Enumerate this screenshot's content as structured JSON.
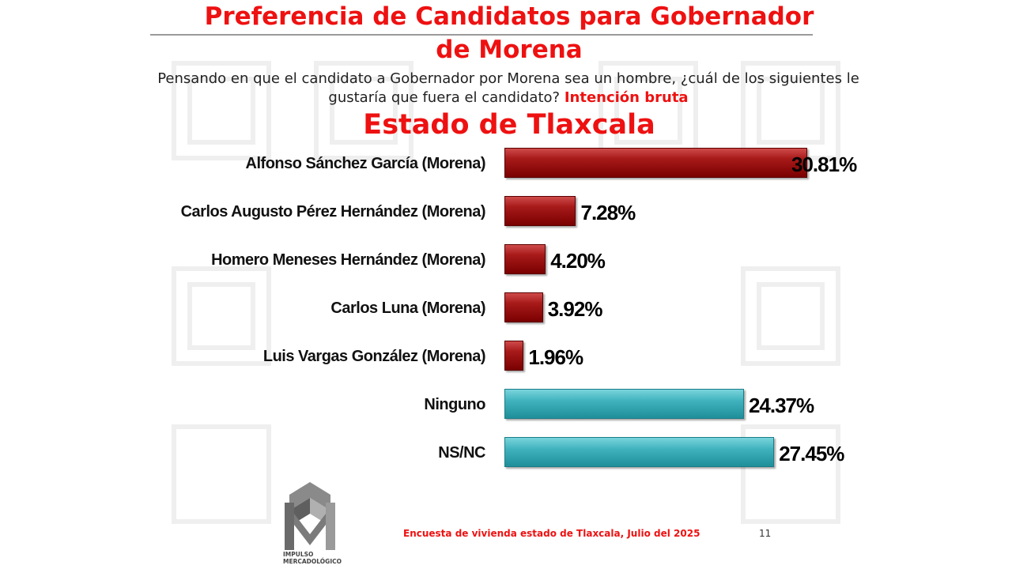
{
  "title_line1": "Preferencia de Candidatos para Gobernador",
  "title_line2": "de Morena",
  "question": "Pensando en que el candidato a Gobernador por Morena sea un hombre, ¿cuál de los siguientes le gustaría que fuera el candidato?",
  "question_highlight": "Intención bruta",
  "state": "Estado de Tlaxcala",
  "chart_data": {
    "type": "bar",
    "orientation": "horizontal",
    "categories": [
      "Alfonso Sánchez García (Morena)",
      "Carlos Augusto Pérez Hernández (Morena)",
      "Homero Meneses Hernández (Morena)",
      "Carlos Luna (Morena)",
      "Luis Vargas González (Morena)",
      "Ninguno",
      "NS/NC"
    ],
    "values": [
      30.81,
      7.28,
      4.2,
      3.92,
      1.96,
      24.37,
      27.45
    ],
    "value_labels": [
      "30.81%",
      "7.28%",
      "4.20%",
      "3.92%",
      "1.96%",
      "24.37%",
      "27.45%"
    ],
    "bar_colors": [
      "#8b0000",
      "#8b0000",
      "#8b0000",
      "#8b0000",
      "#8b0000",
      "#3fb2bd",
      "#3fb2bd"
    ],
    "xlim": [
      0,
      30.81
    ],
    "grid": false,
    "legend": "none"
  },
  "logo": {
    "line1": "IMPULSO",
    "line2": "MERCADOLÓGICO"
  },
  "footer": "Encuesta de vivienda estado de Tlaxcala, Julio   del 2025",
  "page_number": "11"
}
